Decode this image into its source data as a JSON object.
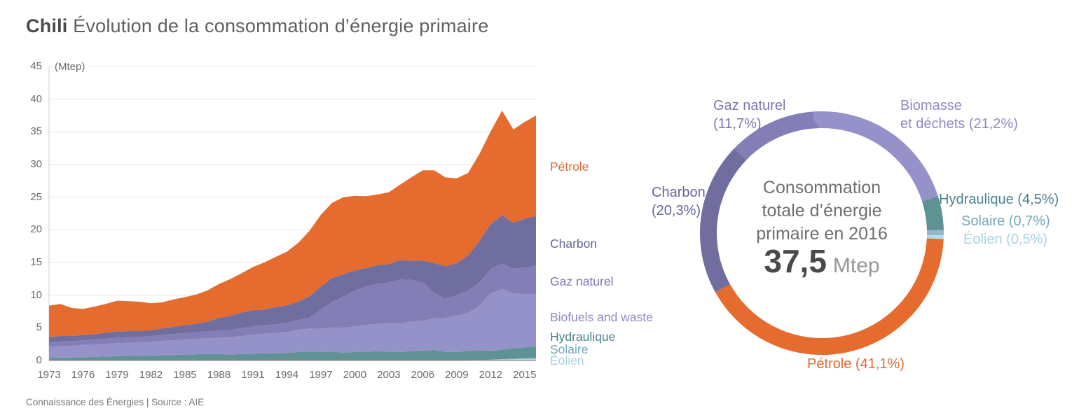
{
  "header": {
    "title_bold": "Chili",
    "title_rest": "Évolution de la consommation d’énergie primaire"
  },
  "footer": {
    "credit": "Connaissance des Énergies | Source : AIE"
  },
  "area_chart": {
    "unit_label": "(Mtep)",
    "yticks": [
      0,
      5,
      10,
      15,
      20,
      25,
      30,
      35,
      40,
      45
    ],
    "xticks": [
      1973,
      1976,
      1979,
      1982,
      1985,
      1988,
      1991,
      1994,
      1997,
      2000,
      2003,
      2006,
      2009,
      2012,
      2015
    ]
  },
  "donut": {
    "center_text": "Consommation\ntotale d’énergie\nprimaire en 2016",
    "total_value": "37,5",
    "total_unit": "Mtep",
    "labels": {
      "gaz": "Gaz naturel\n(11,7%)",
      "biomasse": "Biomasse\net déchets (21,2%)",
      "hydraulique": "Hydraulique (4,5%)",
      "solaire": "Solaire (0,7%)",
      "eolien": "Éolien (0,5%)",
      "petrole": "Pétrole (41,1%)",
      "charbon": "Charbon\n(20,3%)"
    }
  },
  "chart_data": [
    {
      "type": "area",
      "stacked": true,
      "title": "Chili — Évolution de la consommation d’énergie primaire",
      "ylabel": "Mtep",
      "ylim": [
        0,
        45
      ],
      "grid": true,
      "x": [
        1973,
        1974,
        1975,
        1976,
        1977,
        1978,
        1979,
        1980,
        1981,
        1982,
        1983,
        1984,
        1985,
        1986,
        1987,
        1988,
        1989,
        1990,
        1991,
        1992,
        1993,
        1994,
        1995,
        1996,
        1997,
        1998,
        1999,
        2000,
        2001,
        2002,
        2003,
        2004,
        2005,
        2006,
        2007,
        2008,
        2009,
        2010,
        2011,
        2012,
        2013,
        2014,
        2015,
        2016
      ],
      "series": [
        {
          "key": "eolien",
          "name": "Éolien",
          "color": "#B5DDE9",
          "text_color": "#A6D3E3",
          "values": [
            0,
            0,
            0,
            0,
            0,
            0,
            0,
            0,
            0,
            0,
            0,
            0,
            0,
            0,
            0,
            0,
            0,
            0,
            0,
            0,
            0,
            0,
            0,
            0,
            0,
            0,
            0,
            0,
            0,
            0,
            0,
            0,
            0,
            0,
            0.02,
            0.03,
            0.04,
            0.08,
            0.1,
            0.12,
            0.15,
            0.17,
            0.18,
            0.19
          ]
        },
        {
          "key": "solaire",
          "name": "Solaire",
          "color": "#8FB9C9",
          "text_color": "#6FA9BB",
          "values": [
            0,
            0,
            0,
            0,
            0,
            0,
            0,
            0,
            0,
            0,
            0,
            0,
            0,
            0,
            0,
            0,
            0,
            0,
            0,
            0,
            0,
            0,
            0,
            0,
            0,
            0,
            0,
            0,
            0,
            0,
            0,
            0,
            0,
            0,
            0,
            0,
            0,
            0,
            0,
            0,
            0.05,
            0.1,
            0.18,
            0.26
          ]
        },
        {
          "key": "hydraulique",
          "name": "Hydraulique",
          "color": "#5E9295",
          "text_color": "#49838D",
          "values": [
            0.4,
            0.45,
            0.45,
            0.5,
            0.55,
            0.6,
            0.65,
            0.7,
            0.7,
            0.75,
            0.8,
            0.85,
            0.9,
            0.95,
            1.0,
            1.0,
            0.9,
            1.0,
            1.05,
            1.1,
            1.1,
            1.15,
            1.3,
            1.35,
            1.3,
            1.35,
            1.2,
            1.3,
            1.35,
            1.4,
            1.35,
            1.3,
            1.45,
            1.5,
            1.6,
            1.3,
            1.25,
            1.4,
            1.5,
            1.35,
            1.45,
            1.6,
            1.65,
            1.7
          ]
        },
        {
          "key": "biomasse",
          "name": "Biofuels and waste",
          "color": "#9591C9",
          "text_color": "#8F8AC6",
          "values": [
            1.7,
            1.75,
            1.8,
            1.85,
            1.9,
            1.95,
            2.0,
            2.0,
            2.05,
            2.1,
            2.2,
            2.25,
            2.3,
            2.35,
            2.4,
            2.5,
            2.6,
            2.75,
            2.9,
            3.0,
            3.1,
            3.2,
            3.4,
            3.5,
            3.6,
            3.7,
            3.8,
            3.9,
            4.1,
            4.2,
            4.3,
            4.4,
            4.5,
            4.6,
            4.8,
            5.2,
            5.6,
            5.8,
            6.8,
            8.8,
            9.3,
            8.4,
            8.1,
            7.95
          ]
        },
        {
          "key": "gaz",
          "name": "Gaz naturel",
          "color": "#837FB6",
          "text_color": "#7B77B1",
          "values": [
            0.7,
            0.7,
            0.7,
            0.75,
            0.75,
            0.8,
            0.8,
            0.85,
            0.85,
            0.9,
            0.9,
            0.95,
            1.0,
            1.0,
            1.05,
            1.1,
            1.15,
            1.2,
            1.25,
            1.3,
            1.35,
            1.4,
            1.5,
            1.7,
            2.9,
            3.9,
            4.8,
            5.5,
            5.9,
            6.1,
            6.3,
            6.7,
            6.4,
            5.8,
            4.0,
            2.9,
            3.1,
            3.4,
            3.5,
            3.7,
            3.9,
            3.8,
            4.1,
            4.4
          ]
        },
        {
          "key": "charbon",
          "name": "Charbon",
          "color": "#6F6E9F",
          "text_color": "#66659A",
          "values": [
            0.8,
            0.85,
            0.8,
            0.8,
            0.85,
            0.9,
            1.0,
            0.95,
            0.9,
            0.9,
            1.0,
            1.1,
            1.2,
            1.3,
            1.5,
            1.9,
            2.2,
            2.4,
            2.5,
            2.4,
            2.6,
            2.7,
            2.8,
            3.3,
            3.5,
            3.7,
            3.4,
            3.1,
            2.8,
            2.9,
            2.8,
            3.0,
            2.9,
            3.4,
            4.5,
            5.0,
            4.9,
            5.4,
            6.4,
            6.9,
            7.4,
            7.0,
            7.5,
            7.6
          ]
        },
        {
          "key": "petrole",
          "name": "Pétrole",
          "color": "#E56B2E",
          "text_color": "#E2692E",
          "values": [
            4.8,
            4.9,
            4.3,
            4.0,
            4.2,
            4.4,
            4.7,
            4.6,
            4.5,
            4.1,
            4.0,
            4.2,
            4.3,
            4.5,
            4.8,
            5.2,
            5.6,
            6.0,
            6.6,
            7.2,
            7.7,
            8.2,
            9.0,
            10.0,
            11.0,
            11.5,
            11.8,
            11.4,
            11.0,
            10.8,
            11.0,
            11.5,
            12.8,
            13.8,
            14.2,
            13.6,
            13.0,
            12.6,
            13.3,
            14.2,
            16.0,
            14.3,
            14.8,
            15.4
          ]
        }
      ]
    },
    {
      "type": "donut",
      "title": "Consommation totale d’énergie primaire en 2016",
      "total": {
        "value": 37.5,
        "unit": "Mtep"
      },
      "start_angle_deg": -4,
      "slices": [
        {
          "key": "biomasse",
          "name": "Biomasse et déchets",
          "pct": 21.2,
          "color": "#9591C9"
        },
        {
          "key": "hydraulique",
          "name": "Hydraulique",
          "pct": 4.5,
          "color": "#5E9295"
        },
        {
          "key": "solaire",
          "name": "Solaire",
          "pct": 0.7,
          "color": "#8FB9C9"
        },
        {
          "key": "eolien",
          "name": "Éolien",
          "pct": 0.5,
          "color": "#B5DDE9"
        },
        {
          "key": "petrole",
          "name": "Pétrole",
          "pct": 41.1,
          "color": "#E56B2E"
        },
        {
          "key": "charbon",
          "name": "Charbon",
          "pct": 20.3,
          "color": "#6F6E9F"
        },
        {
          "key": "gaz",
          "name": "Gaz naturel",
          "pct": 11.7,
          "color": "#837FB6"
        }
      ]
    }
  ]
}
